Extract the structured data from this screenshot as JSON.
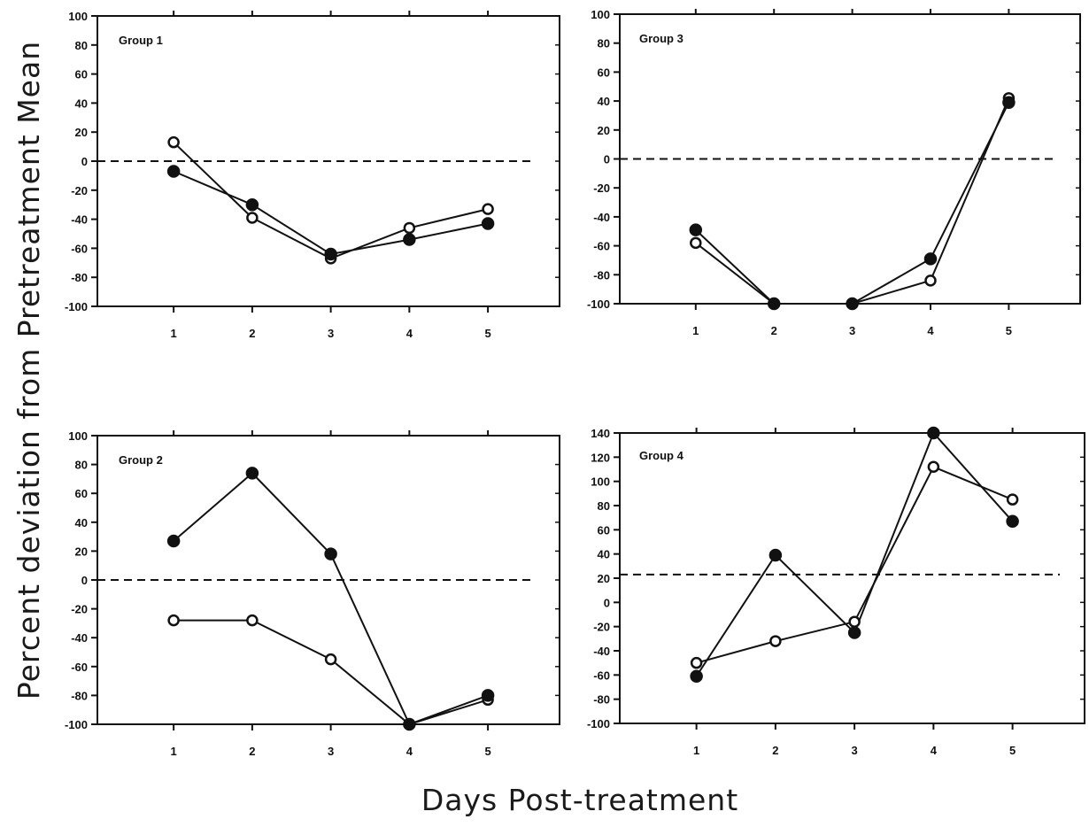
{
  "figure": {
    "ylabel": "Percent deviation from Pretreatment Mean",
    "xlabel": "Days Post-treatment"
  },
  "colors": {
    "ink": "#111111",
    "background": "#ffffff"
  },
  "chart_data": [
    {
      "type": "line",
      "panel_label": "Group 1",
      "x": [
        1,
        2,
        3,
        4,
        5
      ],
      "x_ticks": [
        "1",
        "2",
        "3",
        "4",
        "5"
      ],
      "ylim": [
        -100,
        100
      ],
      "y_ticks": [
        -100,
        -80,
        -60,
        -40,
        -20,
        0,
        20,
        40,
        60,
        80,
        100
      ],
      "reference_line": 0,
      "series": [
        {
          "marker": "open-circle",
          "values": [
            13,
            -39,
            -67,
            -46,
            -33
          ]
        },
        {
          "marker": "filled-circle",
          "values": [
            -7,
            -30,
            -64,
            -54,
            -43
          ]
        }
      ]
    },
    {
      "type": "line",
      "panel_label": "Group 3",
      "x": [
        1,
        2,
        3,
        4,
        5
      ],
      "x_ticks": [
        "1",
        "2",
        "3",
        "4",
        "5"
      ],
      "ylim": [
        -100,
        100
      ],
      "y_ticks": [
        -100,
        -80,
        -60,
        -40,
        -20,
        0,
        20,
        40,
        60,
        80,
        100
      ],
      "reference_line": 0,
      "series": [
        {
          "marker": "open-circle",
          "values": [
            -58,
            -100,
            -100,
            -84,
            42
          ]
        },
        {
          "marker": "filled-circle",
          "values": [
            -49,
            -100,
            -100,
            -69,
            39
          ]
        }
      ]
    },
    {
      "type": "line",
      "panel_label": "Group 2",
      "x": [
        1,
        2,
        3,
        4,
        5
      ],
      "x_ticks": [
        "1",
        "2",
        "3",
        "4",
        "5"
      ],
      "ylim": [
        -100,
        100
      ],
      "y_ticks": [
        -100,
        -80,
        -60,
        -40,
        -20,
        0,
        20,
        40,
        60,
        80,
        100
      ],
      "reference_line": 0,
      "series": [
        {
          "marker": "open-circle",
          "values": [
            -28,
            -28,
            -55,
            -100,
            -83
          ]
        },
        {
          "marker": "filled-circle",
          "values": [
            27,
            74,
            18,
            -100,
            -80
          ]
        }
      ]
    },
    {
      "type": "line",
      "panel_label": "Group 4",
      "x": [
        1,
        2,
        3,
        4,
        5
      ],
      "x_ticks": [
        "1",
        "2",
        "3",
        "4",
        "5"
      ],
      "ylim": [
        -100,
        140
      ],
      "y_ticks": [
        -100,
        -80,
        -60,
        -40,
        -20,
        0,
        20,
        40,
        60,
        80,
        100,
        120,
        140
      ],
      "reference_line": 23,
      "series": [
        {
          "marker": "open-circle",
          "values": [
            -50,
            -32,
            -16,
            112,
            85
          ]
        },
        {
          "marker": "filled-circle",
          "values": [
            -61,
            39,
            -25,
            140,
            67
          ]
        }
      ]
    }
  ]
}
